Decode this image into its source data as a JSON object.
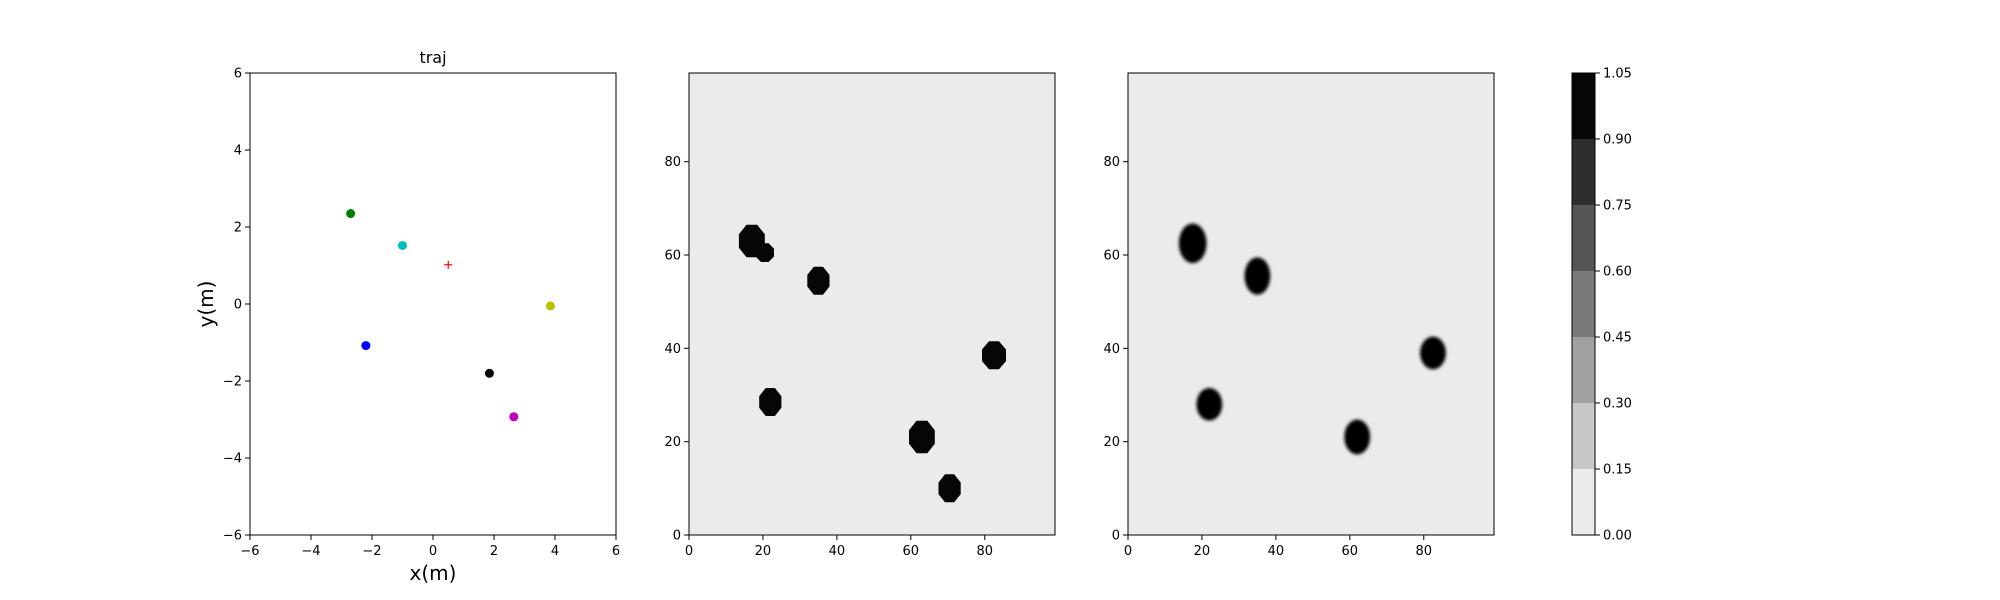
{
  "chart_data": [
    {
      "type": "scatter",
      "title": "traj",
      "xlabel": "x(m)",
      "ylabel": "y(m)",
      "xlim": [
        -6,
        6
      ],
      "ylim": [
        -6,
        6
      ],
      "xticks": [
        "−6",
        "−4",
        "−2",
        "0",
        "2",
        "4",
        "6"
      ],
      "yticks": [
        "−6",
        "−4",
        "−2",
        "0",
        "2",
        "4",
        "6"
      ],
      "grid": false,
      "points": [
        {
          "x": -2.7,
          "y": 2.35,
          "color": "#008000",
          "marker": "circle"
        },
        {
          "x": -1.0,
          "y": 1.52,
          "color": "#00bfbf",
          "marker": "circle"
        },
        {
          "x": -2.2,
          "y": -1.08,
          "color": "#0000ff",
          "marker": "circle"
        },
        {
          "x": 3.85,
          "y": -0.05,
          "color": "#bfbf00",
          "marker": "circle"
        },
        {
          "x": 1.85,
          "y": -1.8,
          "color": "#000000",
          "marker": "circle"
        },
        {
          "x": 2.65,
          "y": -2.93,
          "color": "#bf00bf",
          "marker": "circle"
        },
        {
          "x": 0.5,
          "y": 1.02,
          "color": "#ff0000",
          "marker": "plus"
        }
      ]
    },
    {
      "type": "heatmap",
      "title": "",
      "xlabel": "",
      "ylabel": "",
      "xlim": [
        0,
        99
      ],
      "ylim": [
        0,
        99
      ],
      "xticks": [
        "0",
        "20",
        "40",
        "60",
        "80"
      ],
      "yticks": [
        "0",
        "20",
        "40",
        "60",
        "80"
      ],
      "background_value": 0.05,
      "blob_style": "octagon",
      "blobs": [
        {
          "x": 17,
          "y": 63,
          "w": 7,
          "h": 7,
          "value": 1.0
        },
        {
          "x": 20.5,
          "y": 60.5,
          "w": 5,
          "h": 4,
          "value": 1.0
        },
        {
          "x": 35,
          "y": 54.5,
          "w": 6,
          "h": 6,
          "value": 1.0
        },
        {
          "x": 22,
          "y": 28.5,
          "w": 6,
          "h": 6,
          "value": 1.0
        },
        {
          "x": 63,
          "y": 21,
          "w": 7,
          "h": 7,
          "value": 1.0
        },
        {
          "x": 70.5,
          "y": 10,
          "w": 6,
          "h": 6,
          "value": 1.0
        },
        {
          "x": 82.5,
          "y": 38.5,
          "w": 6.5,
          "h": 6,
          "value": 1.0
        }
      ]
    },
    {
      "type": "heatmap",
      "title": "",
      "xlabel": "",
      "ylabel": "",
      "xlim": [
        0,
        99
      ],
      "ylim": [
        0,
        99
      ],
      "xticks": [
        "0",
        "20",
        "40",
        "60",
        "80"
      ],
      "yticks": [
        "0",
        "20",
        "40",
        "60",
        "80"
      ],
      "background_value": 0.05,
      "blob_style": "ellipse",
      "blobs": [
        {
          "x": 17.5,
          "y": 62.5,
          "w": 7.5,
          "h": 8.5,
          "value": 1.0
        },
        {
          "x": 35,
          "y": 55.5,
          "w": 7,
          "h": 8,
          "value": 1.0
        },
        {
          "x": 22,
          "y": 28,
          "w": 7,
          "h": 7,
          "value": 1.0
        },
        {
          "x": 62,
          "y": 21,
          "w": 7,
          "h": 7.5,
          "value": 1.0
        },
        {
          "x": 82.5,
          "y": 39,
          "w": 7,
          "h": 7,
          "value": 1.0
        }
      ]
    }
  ],
  "colorbar": {
    "levels": [
      0.0,
      0.15,
      0.3,
      0.45,
      0.6,
      0.75,
      0.9,
      1.05
    ],
    "tick_labels": [
      "0.00",
      "0.15",
      "0.30",
      "0.45",
      "0.60",
      "0.75",
      "0.90",
      "1.05"
    ],
    "colors": [
      "#ebebeb",
      "#c8c8c8",
      "#a0a0a0",
      "#7a7a7a",
      "#555555",
      "#2e2e2e",
      "#060606"
    ]
  }
}
